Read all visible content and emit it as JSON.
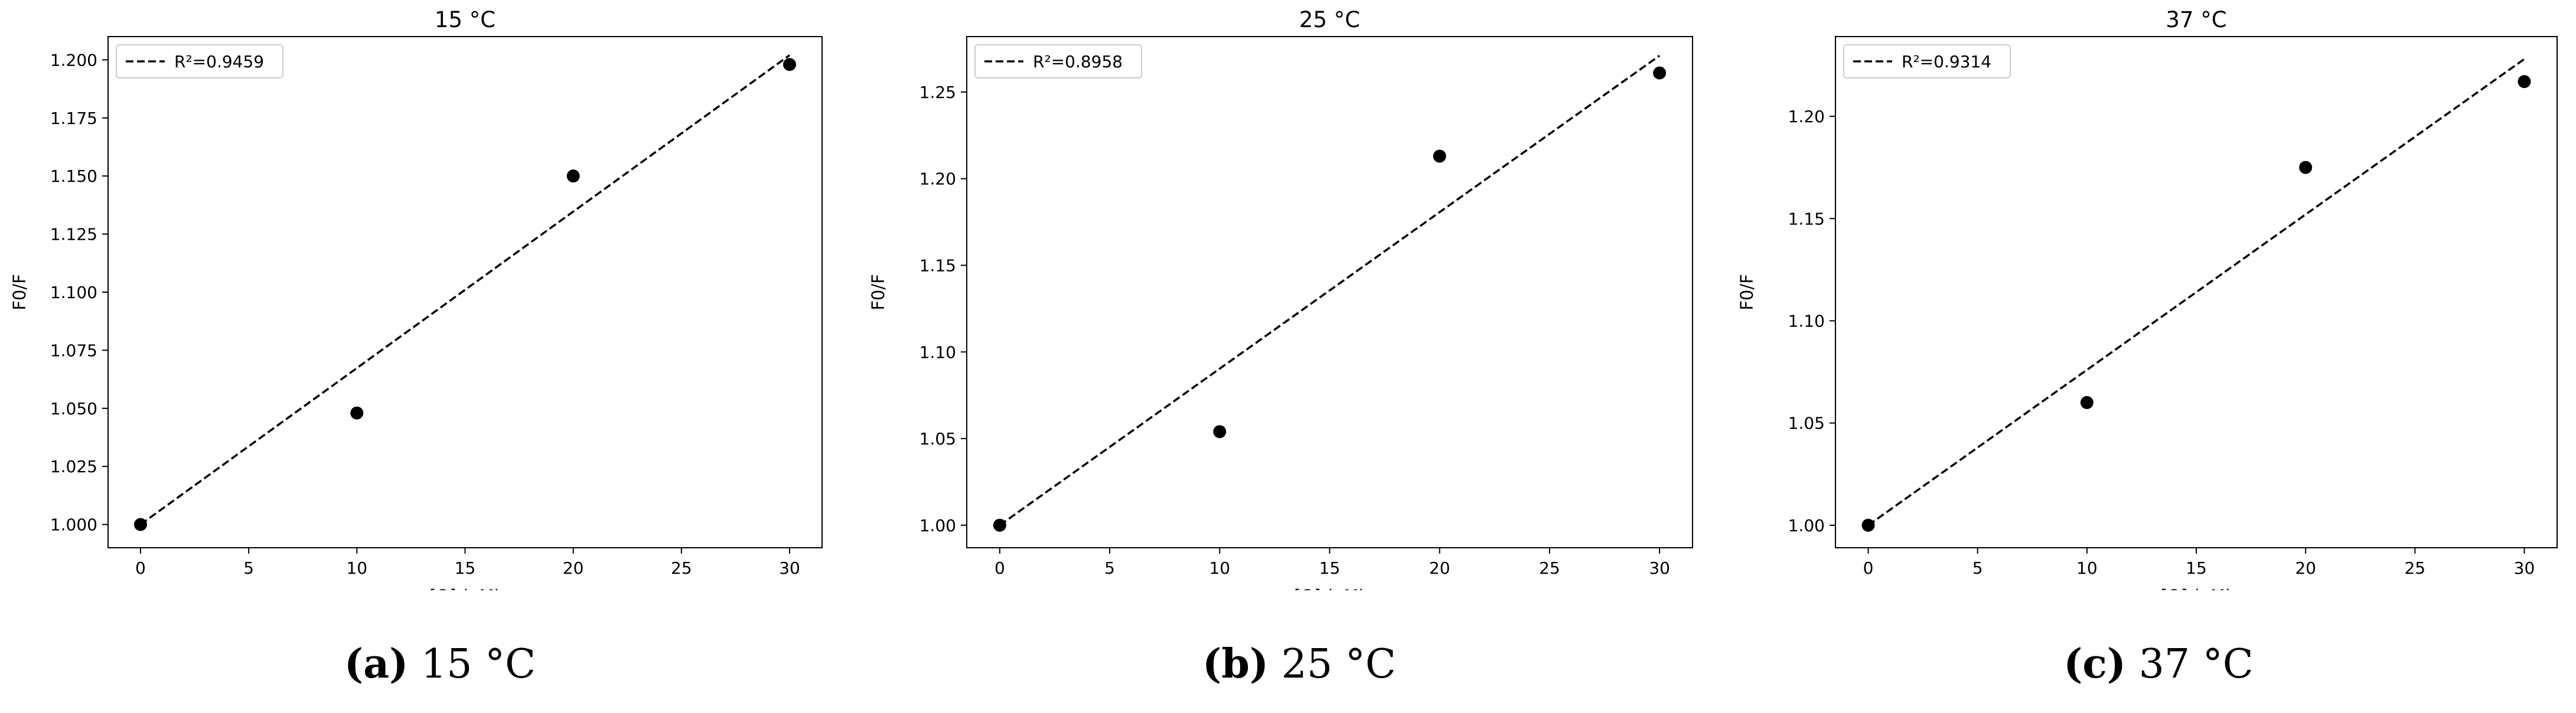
{
  "chart_data": [
    {
      "type": "scatter",
      "title": "15 °C",
      "xlabel": "[Q] (μM)",
      "ylabel": "F0/F",
      "xlim": [
        -1.5,
        31.5
      ],
      "ylim": [
        0.99,
        1.21
      ],
      "xticks": [
        0,
        5,
        10,
        15,
        20,
        25,
        30
      ],
      "yticks": [
        1.0,
        1.025,
        1.05,
        1.075,
        1.1,
        1.125,
        1.15,
        1.175,
        1.2
      ],
      "ytick_labels": [
        "1.000",
        "1.025",
        "1.050",
        "1.075",
        "1.100",
        "1.125",
        "1.150",
        "1.175",
        "1.200"
      ],
      "grid": false,
      "legend_position": "top-left",
      "series": [
        {
          "kind": "points",
          "x": [
            0,
            10,
            20,
            30
          ],
          "y": [
            1.0,
            1.048,
            1.15,
            1.198
          ]
        },
        {
          "kind": "fit",
          "name": "R²=0.9459",
          "x": [
            0,
            30
          ],
          "y": [
            1.0,
            1.202
          ],
          "style": "dashed"
        }
      ],
      "caption": {
        "label": "(a)",
        "text": "15 °C"
      }
    },
    {
      "type": "scatter",
      "title": "25 °C",
      "xlabel": "[Q] (μM)",
      "ylabel": "F0/F",
      "xlim": [
        -1.5,
        31.5
      ],
      "ylim": [
        0.987,
        1.282
      ],
      "xticks": [
        0,
        5,
        10,
        15,
        20,
        25,
        30
      ],
      "yticks": [
        1.0,
        1.05,
        1.1,
        1.15,
        1.2,
        1.25
      ],
      "ytick_labels": [
        "1.00",
        "1.05",
        "1.10",
        "1.15",
        "1.20",
        "1.25"
      ],
      "grid": false,
      "legend_position": "top-left",
      "series": [
        {
          "kind": "points",
          "x": [
            0,
            10,
            20,
            30
          ],
          "y": [
            1.0,
            1.054,
            1.213,
            1.261
          ]
        },
        {
          "kind": "fit",
          "name": "R²=0.8958",
          "x": [
            0,
            30
          ],
          "y": [
            1.0,
            1.271
          ],
          "style": "dashed"
        }
      ],
      "caption": {
        "label": "(b)",
        "text": "25 °C"
      }
    },
    {
      "type": "scatter",
      "title": "37 °C",
      "xlabel": "[Q] (μM)",
      "ylabel": "F0/F",
      "xlim": [
        -1.5,
        31.5
      ],
      "ylim": [
        0.989,
        1.239
      ],
      "xticks": [
        0,
        5,
        10,
        15,
        20,
        25,
        30
      ],
      "yticks": [
        1.0,
        1.05,
        1.1,
        1.15,
        1.2
      ],
      "ytick_labels": [
        "1.00",
        "1.05",
        "1.10",
        "1.15",
        "1.20"
      ],
      "grid": false,
      "legend_position": "top-left",
      "series": [
        {
          "kind": "points",
          "x": [
            0,
            10,
            20,
            30
          ],
          "y": [
            1.0,
            1.06,
            1.175,
            1.217
          ]
        },
        {
          "kind": "fit",
          "name": "R²=0.9314",
          "x": [
            0,
            30
          ],
          "y": [
            1.0,
            1.228
          ],
          "style": "dashed"
        }
      ],
      "caption": {
        "label": "(c)",
        "text": "37 °C"
      }
    }
  ]
}
